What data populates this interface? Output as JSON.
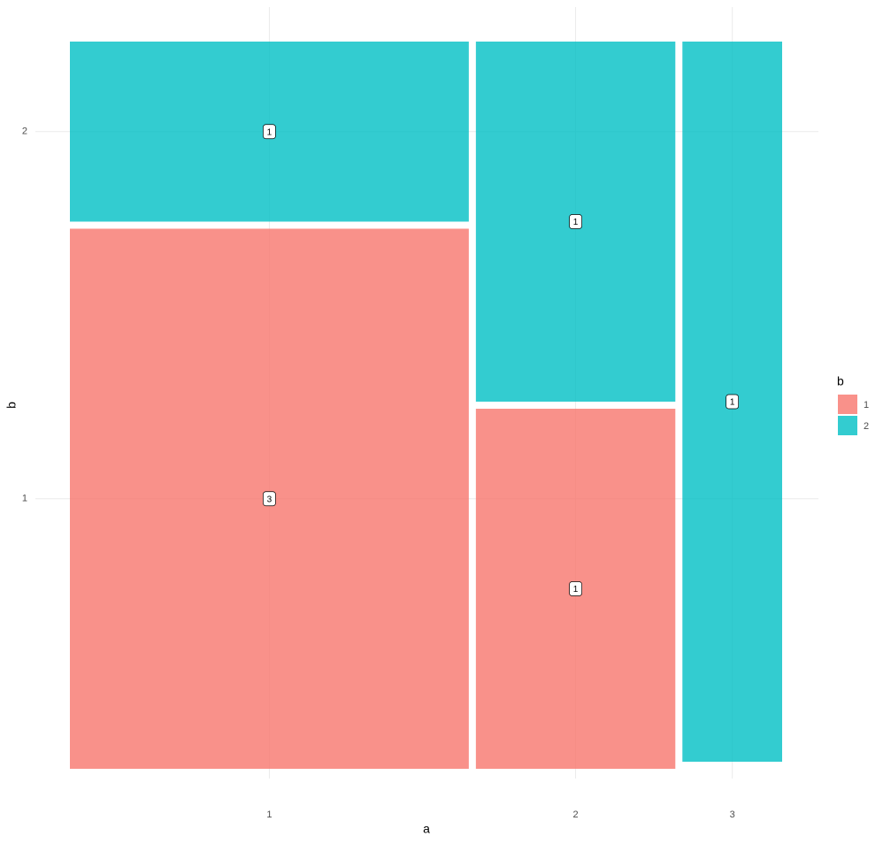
{
  "chart_data": {
    "type": "mosaic",
    "x_label": "a",
    "y_label": "b",
    "legend_title": "b",
    "categories": [
      "1",
      "2",
      "3"
    ],
    "series": [
      {
        "name": "1",
        "color": "#F8766D",
        "values": [
          3,
          1,
          0
        ]
      },
      {
        "name": "2",
        "color": "#00BFC4",
        "values": [
          1,
          1,
          1
        ]
      }
    ],
    "fill_opacity": 0.8,
    "grid": true
  }
}
